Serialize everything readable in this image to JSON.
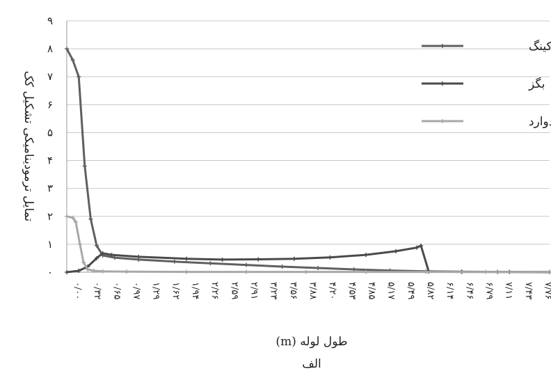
{
  "chart_data": {
    "type": "line",
    "ylabel": "تمایل ترمودینامیکی تشکیل کک",
    "xlabel": "طول لوله (m)",
    "caption": "الف",
    "yticks": [
      "۰",
      "۱",
      "۲",
      "۳",
      "۴",
      "۵",
      "۶",
      "۷",
      "۸",
      "۹"
    ],
    "ylim": [
      0,
      9
    ],
    "xlim": [
      0,
      8.07
    ],
    "xticks": [
      "۰/۰۰",
      "۰/۳۲",
      "۰/۶۵",
      "۰/۹۷",
      "۱/۲۹",
      "۱/۶۲",
      "۱/۹۴",
      "۲/۲۶",
      "۲/۵۹",
      "۲/۹۱",
      "۳/۲۳",
      "۳/۵۶",
      "۳/۸۸",
      "۴/۲۰",
      "۴/۵۳",
      "۴/۸۵",
      "۵/۱۷",
      "۵/۴۹",
      "۵/۸۲",
      "۶/۱۴",
      "۶/۴۶",
      "۶/۷۹",
      "۷/۱۱",
      "۷/۴۳",
      "۷/۷۶"
    ],
    "grid": true,
    "legend_position": "right",
    "series": [
      {
        "name": "کراکینگ",
        "color": "#5f5f5f",
        "marker": "plus",
        "points": [
          [
            0,
            8
          ],
          [
            0.1,
            7.6
          ],
          [
            0.2,
            7
          ],
          [
            0.3,
            3.8
          ],
          [
            0.4,
            1.9
          ],
          [
            0.5,
            0.95
          ],
          [
            0.6,
            0.6
          ],
          [
            0.8,
            0.52
          ],
          [
            1.2,
            0.45
          ],
          [
            1.8,
            0.38
          ],
          [
            2.4,
            0.32
          ],
          [
            3.0,
            0.26
          ],
          [
            3.6,
            0.2
          ],
          [
            4.2,
            0.15
          ],
          [
            4.8,
            0.1
          ],
          [
            5.4,
            0.06
          ],
          [
            6.0,
            0.03
          ],
          [
            6.6,
            0.02
          ],
          [
            7.2,
            0.01
          ],
          [
            8.07,
            0.01
          ]
        ]
      },
      {
        "name": "بگز",
        "color": "#4a4a4a",
        "marker": "plus",
        "points": [
          [
            0,
            0
          ],
          [
            0.2,
            0.05
          ],
          [
            0.35,
            0.2
          ],
          [
            0.5,
            0.5
          ],
          [
            0.6,
            0.68
          ],
          [
            0.75,
            0.62
          ],
          [
            1.2,
            0.55
          ],
          [
            2.0,
            0.48
          ],
          [
            2.6,
            0.45
          ],
          [
            3.2,
            0.46
          ],
          [
            3.8,
            0.48
          ],
          [
            4.4,
            0.53
          ],
          [
            5.0,
            0.62
          ],
          [
            5.5,
            0.75
          ],
          [
            5.85,
            0.88
          ],
          [
            5.92,
            0.95
          ],
          [
            6.05,
            0.02
          ],
          [
            6.6,
            0.01
          ],
          [
            7.4,
            0.01
          ],
          [
            8.07,
            0
          ]
        ]
      },
      {
        "name": "بودوارد",
        "color": "#a8a8a8",
        "marker": "plus",
        "points": [
          [
            0,
            2
          ],
          [
            0.1,
            1.95
          ],
          [
            0.15,
            1.8
          ],
          [
            0.22,
            1.0
          ],
          [
            0.28,
            0.35
          ],
          [
            0.35,
            0.1
          ],
          [
            0.45,
            0.05
          ],
          [
            0.6,
            0.03
          ],
          [
            1.0,
            0.02
          ],
          [
            2.0,
            0.01
          ],
          [
            3.0,
            0.01
          ],
          [
            4.0,
            0.01
          ],
          [
            5.0,
            0.01
          ],
          [
            6.0,
            0.01
          ],
          [
            7.0,
            0.01
          ],
          [
            8.07,
            0.01
          ]
        ]
      }
    ]
  }
}
